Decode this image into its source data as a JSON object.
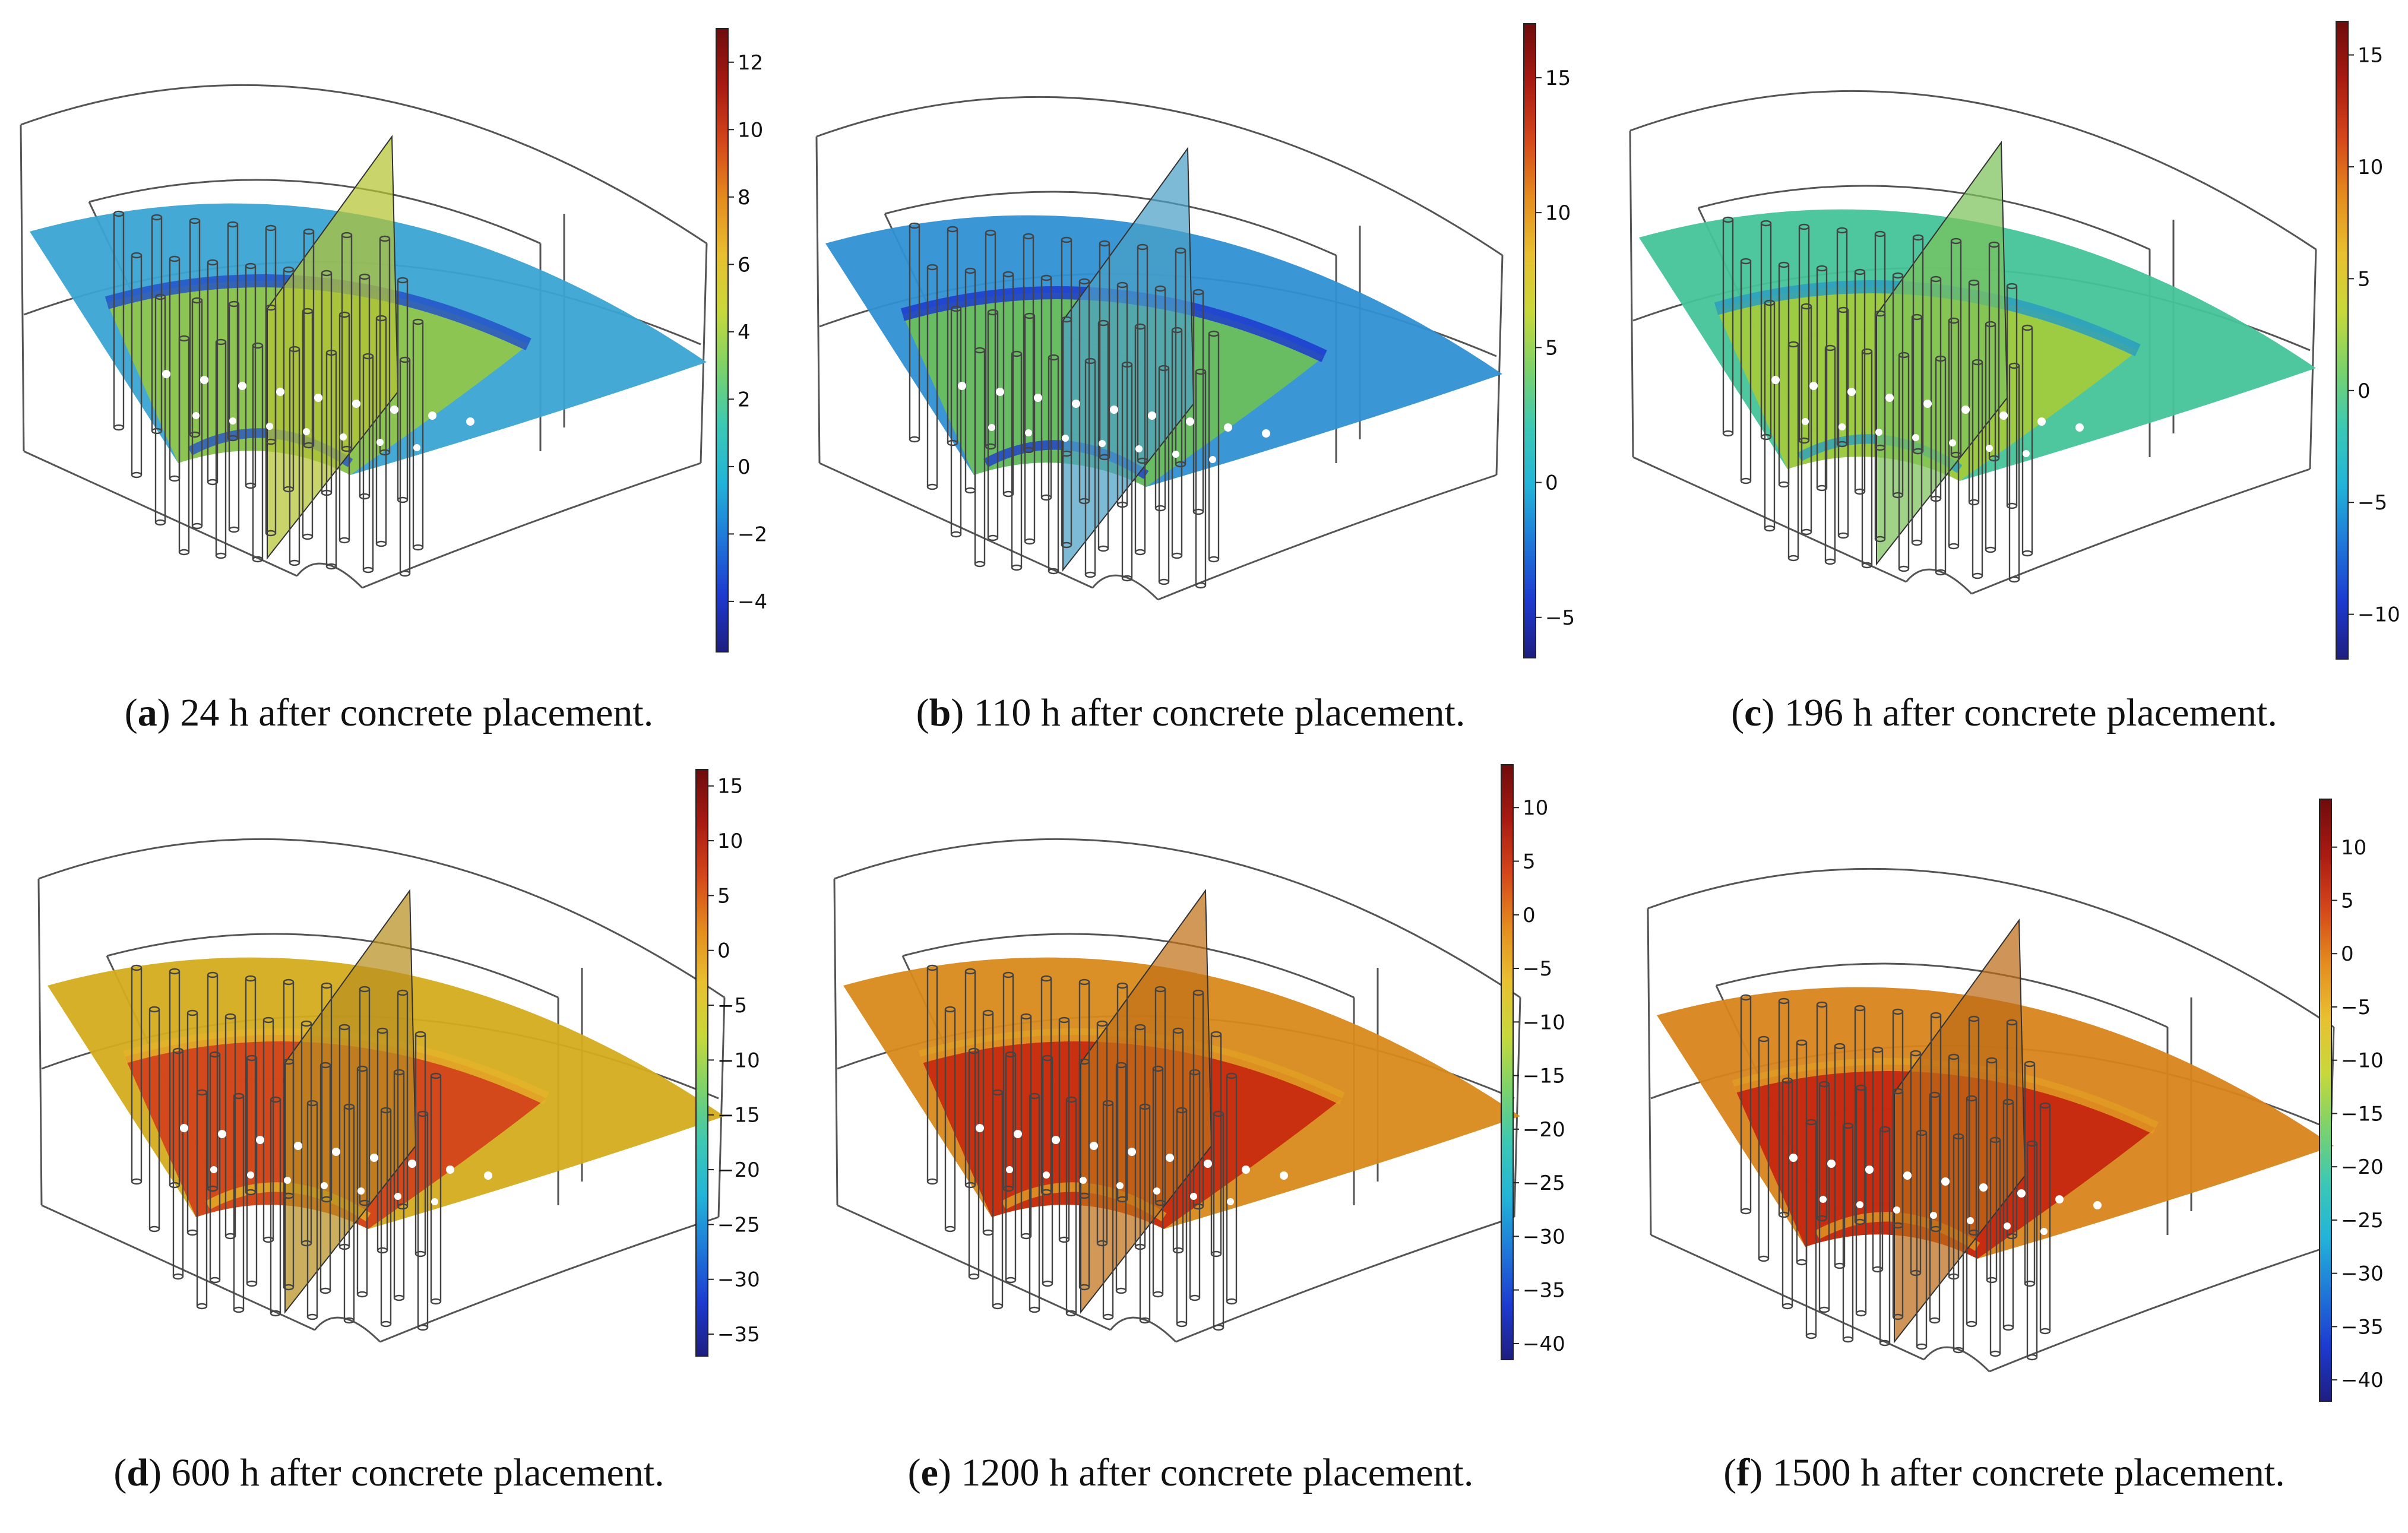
{
  "figure": {
    "colormap": [
      "#1e1e80",
      "#1d3ad0",
      "#1f78d8",
      "#22b4d8",
      "#3cc8b4",
      "#7cd26a",
      "#c8d83a",
      "#e8c030",
      "#e48c1e",
      "#d4461a",
      "#a81a12",
      "#6e0c0c"
    ],
    "panels": [
      {
        "id": "a",
        "label": "a",
        "caption": "24 h after concrete placement.",
        "colorbar_ticks": [
          "12",
          "10",
          "8",
          "6",
          "4",
          "2",
          "0",
          "−2",
          "−4"
        ],
        "colorbar_values": [
          12,
          10,
          8,
          6,
          4,
          2,
          0,
          -2,
          -4
        ],
        "colorbar_range": [
          -5.5,
          13
        ],
        "slab_color": "#3aa4d2",
        "inner_color": "#94c846",
        "vertical_color": "#b4c432",
        "band_color": "#2452c8"
      },
      {
        "id": "b",
        "label": "b",
        "caption": "110 h after concrete placement.",
        "colorbar_ticks": [
          "15",
          "10",
          "5",
          "0",
          "−5"
        ],
        "colorbar_values": [
          15,
          10,
          5,
          0,
          -5
        ],
        "colorbar_range": [
          -6.5,
          17
        ],
        "slab_color": "#2f90d2",
        "inner_color": "#6cc058",
        "vertical_color": "#4aa0c6",
        "band_color": "#1d3ad0"
      },
      {
        "id": "c",
        "label": "c",
        "caption": "196 h after concrete placement.",
        "colorbar_ticks": [
          "15",
          "10",
          "5",
          "0",
          "−5",
          "−10"
        ],
        "colorbar_values": [
          15,
          10,
          5,
          0,
          -5,
          -10
        ],
        "colorbar_range": [
          -12,
          16.5
        ],
        "slab_color": "#44c49a",
        "inner_color": "#a4cc3a",
        "vertical_color": "#7cc25a",
        "band_color": "#2a9ec0"
      },
      {
        "id": "d",
        "label": "d",
        "caption": "600 h after concrete placement.",
        "colorbar_ticks": [
          "15",
          "10",
          "5",
          "0",
          "−5",
          "−10",
          "−15",
          "−20",
          "−25",
          "−30",
          "−35"
        ],
        "colorbar_values": [
          15,
          10,
          5,
          0,
          -5,
          -10,
          -15,
          -20,
          -25,
          -30,
          -35
        ],
        "colorbar_range": [
          -37,
          16.5
        ],
        "slab_color": "#d4ac1c",
        "inner_color": "#d2401a",
        "vertical_color": "#b89020",
        "band_color": "#e4b428"
      },
      {
        "id": "e",
        "label": "e",
        "caption": "1200 h after concrete placement.",
        "colorbar_ticks": [
          "10",
          "5",
          "0",
          "−5",
          "−10",
          "−15",
          "−20",
          "−25",
          "−30",
          "−35",
          "−40"
        ],
        "colorbar_values": [
          10,
          5,
          0,
          -5,
          -10,
          -15,
          -20,
          -25,
          -30,
          -35,
          -40
        ],
        "colorbar_range": [
          -41.5,
          14
        ],
        "slab_color": "#d88a1a",
        "inner_color": "#c8280e",
        "vertical_color": "#c07018",
        "band_color": "#e0a024"
      },
      {
        "id": "f",
        "label": "f",
        "caption": "1500 h after concrete placement.",
        "colorbar_ticks": [
          "10",
          "5",
          "0",
          "−5",
          "−10",
          "−15",
          "−20",
          "−25",
          "−30",
          "−35",
          "−40"
        ],
        "colorbar_values": [
          10,
          5,
          0,
          -5,
          -10,
          -15,
          -20,
          -25,
          -30,
          -35,
          -40
        ],
        "colorbar_range": [
          -42,
          14.5
        ],
        "slab_color": "#d8841a",
        "inner_color": "#c6240e",
        "vertical_color": "#bc6c18",
        "band_color": "#e09c24"
      }
    ]
  }
}
